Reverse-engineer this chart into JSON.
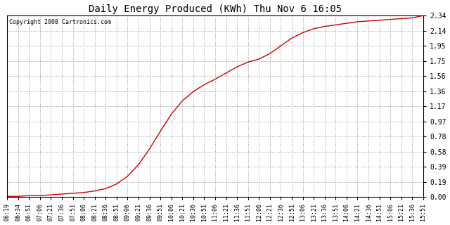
{
  "title": "Daily Energy Produced (KWh) Thu Nov 6 16:05",
  "copyright": "Copyright 2008 Cartronics.com",
  "line_color": "#cc0000",
  "background_color": "#ffffff",
  "plot_bg_color": "#ffffff",
  "grid_color": "#999999",
  "yticks": [
    0.0,
    0.19,
    0.39,
    0.58,
    0.78,
    0.97,
    1.17,
    1.36,
    1.56,
    1.75,
    1.95,
    2.14,
    2.34
  ],
  "ylim": [
    0.0,
    2.34
  ],
  "xtick_labels": [
    "06:19",
    "06:34",
    "06:51",
    "07:06",
    "07:21",
    "07:36",
    "07:51",
    "08:06",
    "08:21",
    "08:36",
    "08:51",
    "09:06",
    "09:21",
    "09:36",
    "09:51",
    "10:06",
    "10:21",
    "10:36",
    "10:51",
    "11:06",
    "11:21",
    "11:36",
    "11:51",
    "12:06",
    "12:21",
    "12:36",
    "12:51",
    "13:06",
    "13:21",
    "13:36",
    "13:51",
    "14:06",
    "14:21",
    "14:36",
    "14:51",
    "15:06",
    "15:21",
    "15:36",
    "15:51"
  ],
  "curve_y_values": [
    0.01,
    0.01,
    0.02,
    0.02,
    0.03,
    0.04,
    0.05,
    0.06,
    0.08,
    0.11,
    0.17,
    0.27,
    0.42,
    0.62,
    0.85,
    1.07,
    1.24,
    1.36,
    1.45,
    1.52,
    1.6,
    1.68,
    1.74,
    1.78,
    1.85,
    1.95,
    2.05,
    2.12,
    2.17,
    2.2,
    2.22,
    2.24,
    2.26,
    2.27,
    2.28,
    2.29,
    2.3,
    2.31,
    2.34
  ]
}
